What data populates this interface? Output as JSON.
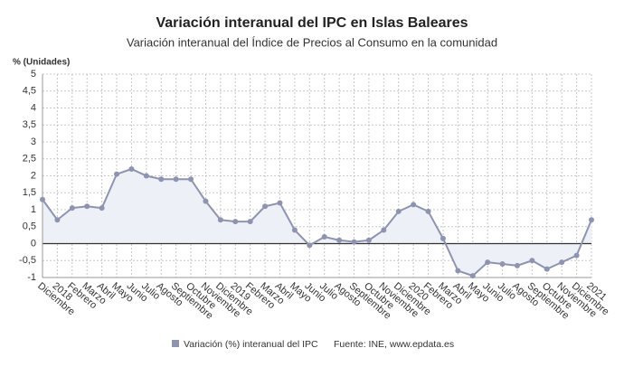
{
  "chart_data": {
    "type": "line",
    "title": "Variación interanual del IPC en Islas Baleares",
    "subtitle": "Variación interanual del Índice de Precios al Consumo en la comunidad",
    "y_label": "% (Unidades)",
    "source": "Fuente: INE, www.epdata.es",
    "categories": [
      "Diciembre",
      "2018",
      "Febrero",
      "Marzo",
      "Abril",
      "Mayo",
      "Junio",
      "Julio",
      "Agosto",
      "Septiembre",
      "Octubre",
      "Noviembre",
      "Diciembre",
      "2019",
      "Febrero",
      "Marzo",
      "Abril",
      "Mayo",
      "Junio",
      "Julio",
      "Agosto",
      "Septiembre",
      "Octubre",
      "Noviembre",
      "Diciembre",
      "2020",
      "Febrero",
      "Marzo",
      "Abril",
      "Mayo",
      "Junio",
      "Julio",
      "Agosto",
      "Septiembre",
      "Octubre",
      "Noviembre",
      "Diciembre",
      "2021"
    ],
    "series": [
      {
        "name": "Variación (%) interanual del IPC",
        "color": "#8e94b0",
        "values": [
          1.3,
          0.7,
          1.05,
          1.1,
          1.05,
          2.05,
          2.2,
          2.0,
          1.9,
          1.9,
          1.9,
          1.25,
          0.7,
          0.65,
          0.65,
          1.1,
          1.2,
          0.4,
          -0.05,
          0.2,
          0.1,
          0.05,
          0.1,
          0.4,
          0.95,
          1.15,
          0.95,
          0.15,
          -0.8,
          -0.95,
          -0.55,
          -0.6,
          -0.65,
          -0.5,
          -0.75,
          -0.55,
          -0.35,
          0.7
        ]
      }
    ],
    "ylim": [
      -1,
      5
    ],
    "yticks": [
      -1,
      {
        "value": -0.5,
        "label": "-0,5"
      },
      0,
      {
        "value": 0.5,
        "label": "0,5"
      },
      1,
      {
        "value": 1.5,
        "label": "1,5"
      },
      2,
      {
        "value": 2.5,
        "label": "2,5"
      },
      3,
      {
        "value": 3.5,
        "label": "3,5"
      },
      4,
      {
        "value": 4.5,
        "label": "4,5"
      },
      5
    ],
    "grid": true,
    "area_fill": "#eef0f7"
  }
}
